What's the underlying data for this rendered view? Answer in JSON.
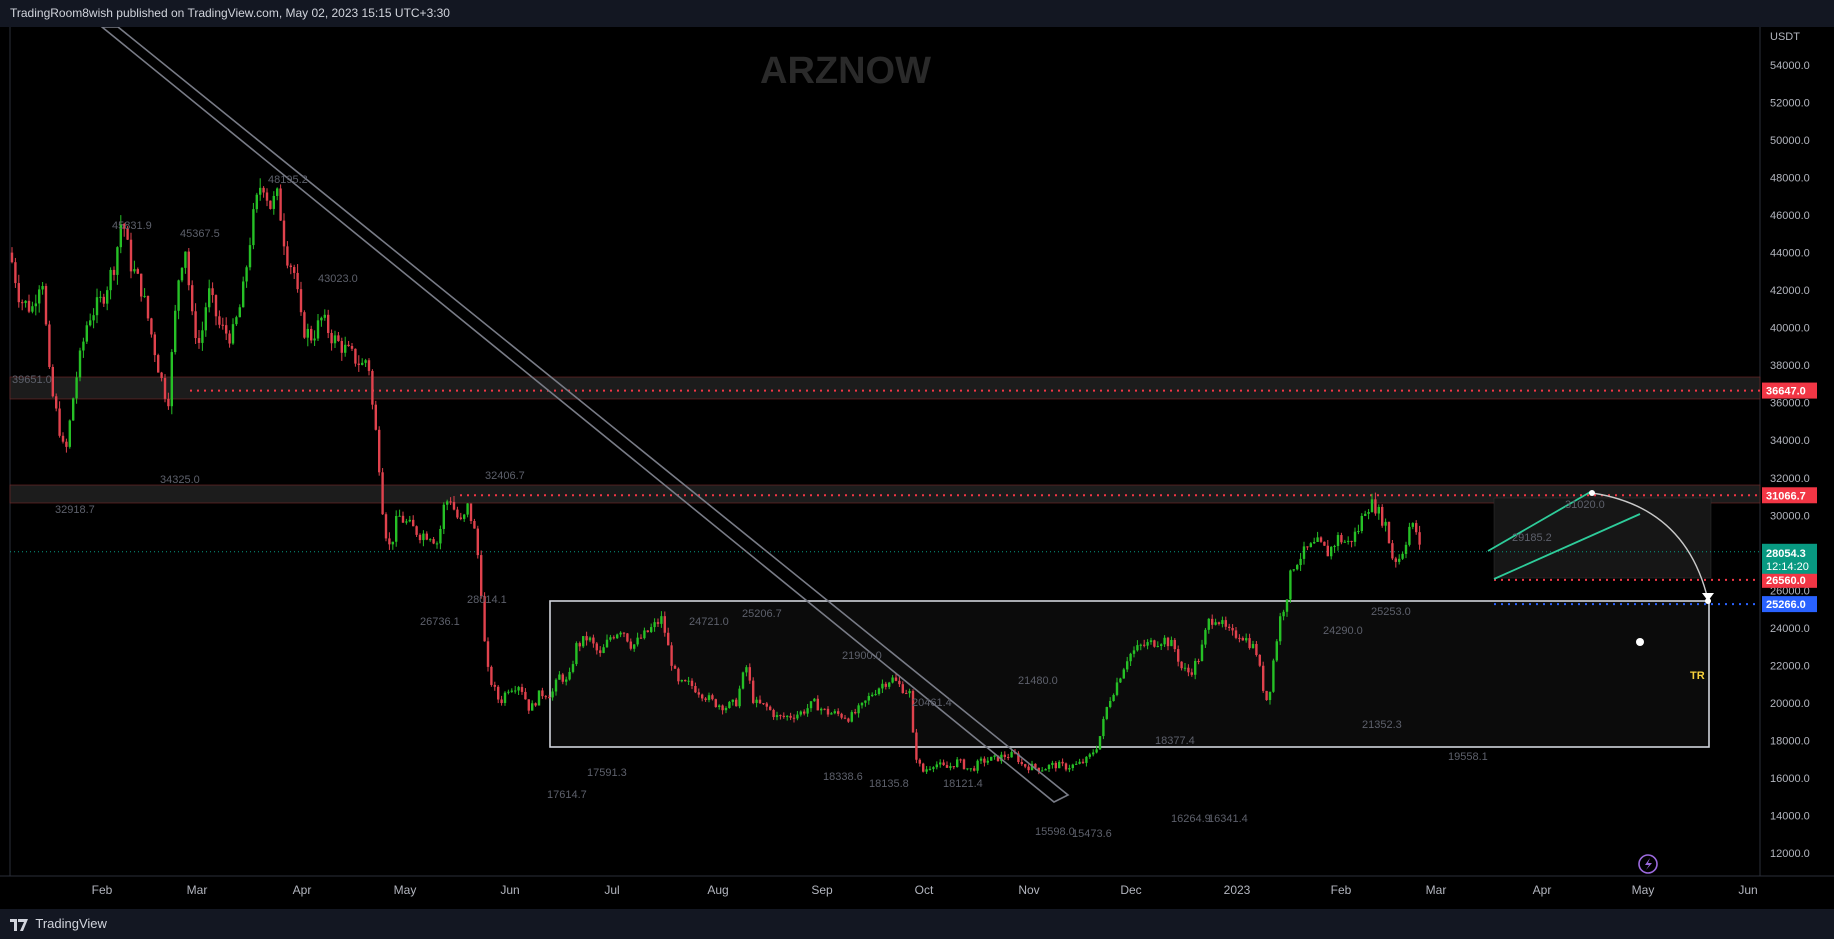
{
  "header": {
    "published": "TradingRoom8wish published on TradingView.com, May 02, 2023 15:15 UTC+3:30"
  },
  "footer": {
    "brand": "TradingView"
  },
  "watermark": "ARZNOW",
  "colors": {
    "background": "#000000",
    "up_candle": "#26c026",
    "down_candle": "#e0424d",
    "axis_text": "#b2b5be",
    "resistance_line": "#f23645",
    "support_line": "#2962ff",
    "current_price": "#089981",
    "range_box": "#d1d4dc",
    "label_text": "#5d606b",
    "tr_label": "#f7d03c"
  },
  "chart_data": {
    "type": "candlestick",
    "symbol_currency": "USDT",
    "x_axis_labels": [
      "Feb",
      "Mar",
      "Apr",
      "May",
      "Jun",
      "Jul",
      "Aug",
      "Sep",
      "Oct",
      "Nov",
      "Dec",
      "2023",
      "Feb",
      "Mar",
      "Apr",
      "May",
      "Jun"
    ],
    "y_axis_ticks": [
      54000,
      52000,
      50000,
      48000,
      46000,
      44000,
      42000,
      40000,
      38000,
      36000,
      34000,
      32000,
      30000,
      28000,
      26000,
      24000,
      22000,
      20000,
      18000,
      16000,
      14000,
      12000
    ],
    "ylim": [
      11000,
      56000
    ],
    "price_path": [
      [
        0,
        44000
      ],
      [
        10,
        41500
      ],
      [
        22,
        41000
      ],
      [
        32,
        43000
      ],
      [
        40,
        37000
      ],
      [
        50,
        34500
      ],
      [
        55,
        33000
      ],
      [
        65,
        37000
      ],
      [
        78,
        40500
      ],
      [
        92,
        41500
      ],
      [
        105,
        43500
      ],
      [
        112,
        46000
      ],
      [
        120,
        43500
      ],
      [
        132,
        42000
      ],
      [
        140,
        40000
      ],
      [
        150,
        37500
      ],
      [
        158,
        36000
      ],
      [
        168,
        42500
      ],
      [
        175,
        44500
      ],
      [
        182,
        40500
      ],
      [
        190,
        39000
      ],
      [
        198,
        42000
      ],
      [
        210,
        40000
      ],
      [
        222,
        39500
      ],
      [
        232,
        41500
      ],
      [
        242,
        45500
      ],
      [
        252,
        48000
      ],
      [
        260,
        46500
      ],
      [
        268,
        47000
      ],
      [
        276,
        44000
      ],
      [
        284,
        43000
      ],
      [
        292,
        40000
      ],
      [
        302,
        39500
      ],
      [
        312,
        40500
      ],
      [
        322,
        39500
      ],
      [
        332,
        39000
      ],
      [
        342,
        38500
      ],
      [
        352,
        38000
      ],
      [
        358,
        38500
      ],
      [
        362,
        36000
      ],
      [
        368,
        33500
      ],
      [
        374,
        29500
      ],
      [
        380,
        28200
      ],
      [
        388,
        30000
      ],
      [
        398,
        29500
      ],
      [
        410,
        29000
      ],
      [
        420,
        29000
      ],
      [
        428,
        28500
      ],
      [
        434,
        30500
      ],
      [
        440,
        31000
      ],
      [
        446,
        30000
      ],
      [
        452,
        29500
      ],
      [
        458,
        30500
      ],
      [
        465,
        29000
      ],
      [
        470,
        27000
      ],
      [
        476,
        22000
      ],
      [
        482,
        21000
      ],
      [
        490,
        20000
      ],
      [
        498,
        20800
      ],
      [
        510,
        21000
      ],
      [
        520,
        19600
      ],
      [
        530,
        20500
      ],
      [
        542,
        20500
      ],
      [
        550,
        21500
      ],
      [
        558,
        21000
      ],
      [
        566,
        23000
      ],
      [
        578,
        23500
      ],
      [
        590,
        22500
      ],
      [
        600,
        23500
      ],
      [
        612,
        24000
      ],
      [
        622,
        23000
      ],
      [
        632,
        23500
      ],
      [
        642,
        24000
      ],
      [
        652,
        24500
      ],
      [
        660,
        22500
      ],
      [
        668,
        21000
      ],
      [
        680,
        21000
      ],
      [
        692,
        20500
      ],
      [
        704,
        20000
      ],
      [
        716,
        19800
      ],
      [
        726,
        20000
      ],
      [
        736,
        22000
      ],
      [
        744,
        20000
      ],
      [
        756,
        19800
      ],
      [
        768,
        19200
      ],
      [
        780,
        19300
      ],
      [
        792,
        19500
      ],
      [
        804,
        20000
      ],
      [
        816,
        19500
      ],
      [
        828,
        19400
      ],
      [
        840,
        19200
      ],
      [
        852,
        19800
      ],
      [
        862,
        20500
      ],
      [
        872,
        21000
      ],
      [
        882,
        21300
      ],
      [
        892,
        20800
      ],
      [
        900,
        20500
      ],
      [
        904,
        17500
      ],
      [
        912,
        16300
      ],
      [
        924,
        16800
      ],
      [
        936,
        16500
      ],
      [
        948,
        16900
      ],
      [
        960,
        16400
      ],
      [
        972,
        16900
      ],
      [
        984,
        17000
      ],
      [
        996,
        17200
      ],
      [
        1006,
        17200
      ],
      [
        1012,
        16700
      ],
      [
        1020,
        16600
      ],
      [
        1032,
        16500
      ],
      [
        1044,
        16700
      ],
      [
        1056,
        16600
      ],
      [
        1068,
        16700
      ],
      [
        1078,
        17000
      ],
      [
        1088,
        17800
      ],
      [
        1098,
        20000
      ],
      [
        1108,
        21200
      ],
      [
        1118,
        22500
      ],
      [
        1130,
        23000
      ],
      [
        1142,
        23200
      ],
      [
        1154,
        23400
      ],
      [
        1164,
        23000
      ],
      [
        1172,
        21800
      ],
      [
        1180,
        21600
      ],
      [
        1190,
        22500
      ],
      [
        1198,
        24300
      ],
      [
        1206,
        24600
      ],
      [
        1214,
        24000
      ],
      [
        1222,
        23600
      ],
      [
        1230,
        23700
      ],
      [
        1238,
        23300
      ],
      [
        1246,
        22800
      ],
      [
        1254,
        20600
      ],
      [
        1258,
        20000
      ],
      [
        1264,
        22500
      ],
      [
        1270,
        24500
      ],
      [
        1276,
        25500
      ],
      [
        1282,
        27200
      ],
      [
        1290,
        27800
      ],
      [
        1298,
        28200
      ],
      [
        1308,
        28500
      ],
      [
        1318,
        28000
      ],
      [
        1328,
        28800
      ],
      [
        1338,
        28500
      ],
      [
        1348,
        29200
      ],
      [
        1356,
        30500
      ],
      [
        1364,
        30600
      ],
      [
        1370,
        30000
      ],
      [
        1376,
        29500
      ],
      [
        1382,
        27800
      ],
      [
        1388,
        27600
      ],
      [
        1394,
        28300
      ],
      [
        1400,
        29500
      ],
      [
        1406,
        29200
      ],
      [
        1410,
        28100
      ]
    ],
    "candle_x_range": [
      0,
      1410
    ],
    "horizontal_levels": [
      {
        "label": "36647.0",
        "price": 36647,
        "color": "red"
      },
      {
        "label": "31066.7",
        "price": 31066.7,
        "color": "red"
      },
      {
        "label": "26560.0",
        "price": 26560,
        "color": "red"
      },
      {
        "label": "25266.0",
        "price": 25266,
        "color": "blue"
      }
    ],
    "current_price": {
      "label": "28054.3",
      "countdown": "12:14:20",
      "price": 28054.3
    },
    "annotations": [
      "39651.0",
      "45831.9",
      "45367.5",
      "48195.2",
      "43023.0",
      "32918.7",
      "34325.0",
      "32406.7",
      "28014.1",
      "26736.1",
      "24721.0",
      "25206.7",
      "21900.0",
      "20461.4",
      "21480.0",
      "17614.7",
      "17591.3",
      "18338.6",
      "18135.8",
      "18121.4",
      "15598.0",
      "15473.6",
      "18377.4",
      "16264.9",
      "16341.4",
      "25253.0",
      "24290.0",
      "21352.3",
      "19558.1",
      "29185.2",
      "31020.0"
    ],
    "range_label": "TR"
  }
}
